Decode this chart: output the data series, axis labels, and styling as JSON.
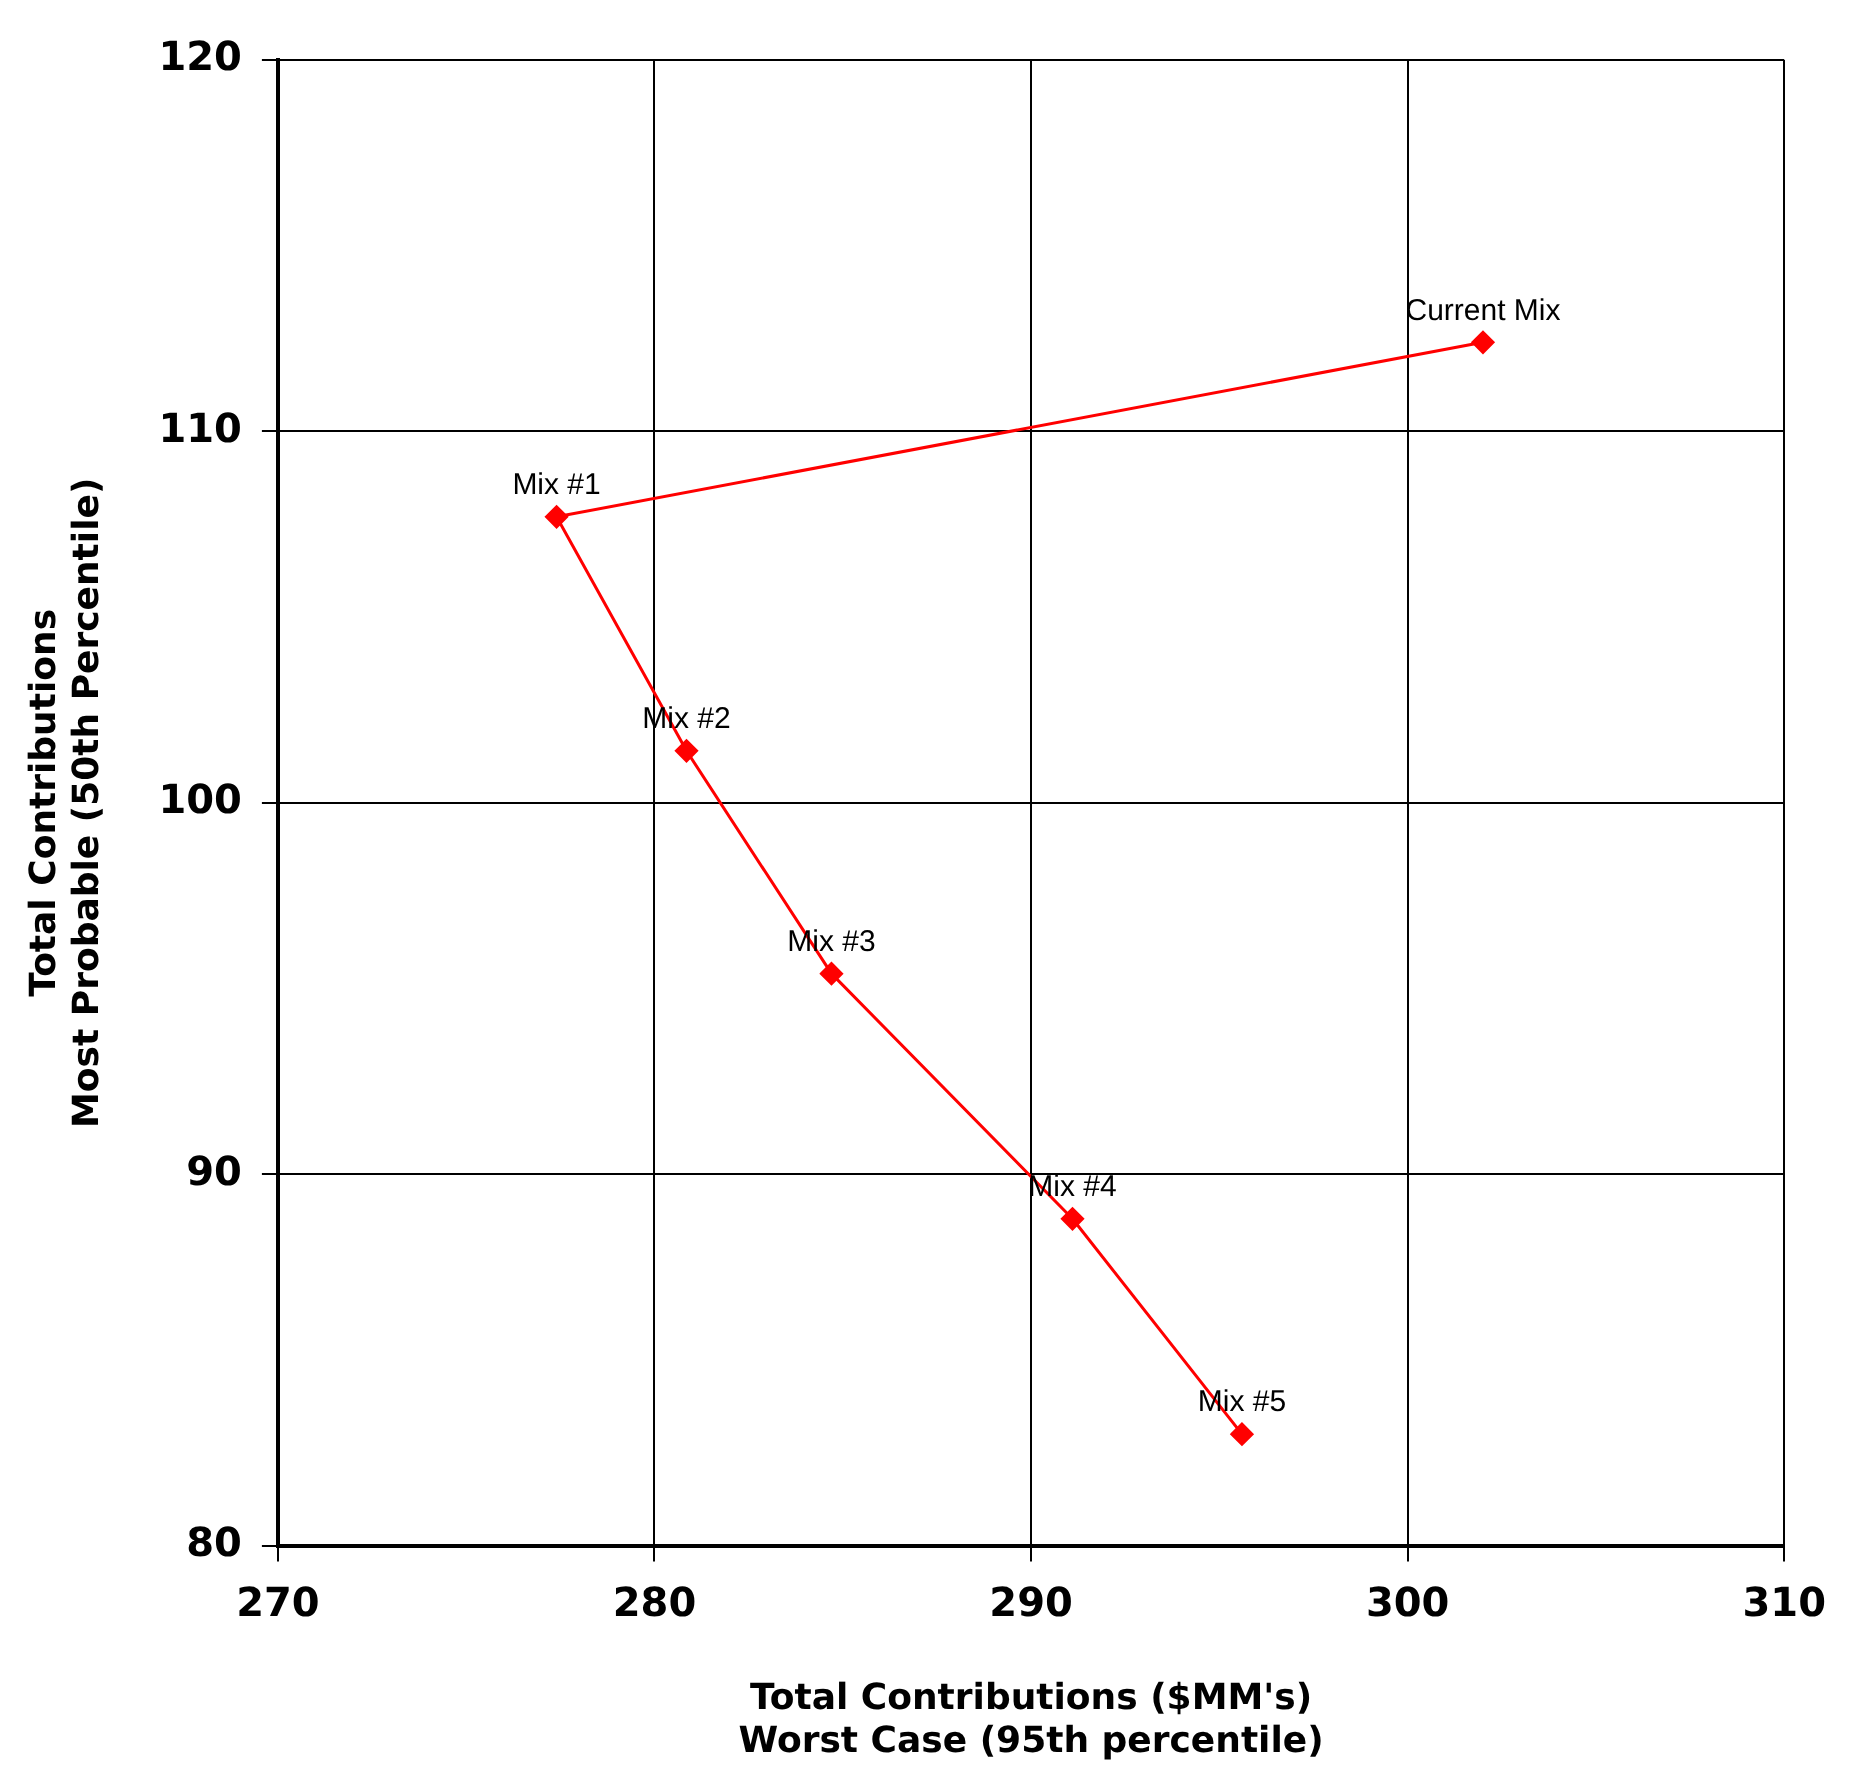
{
  "chart_data": {
    "type": "line",
    "xlabel": "Total Contributions ($MM's)\nWorst Case (95th percentile)",
    "ylabel": "Total Contributions\nMost Probable (50th Percentile)",
    "series": [
      {
        "color": "#ff0000",
        "x": [
          302.0,
          277.4,
          280.85,
          284.7,
          291.1,
          295.6
        ],
        "values": [
          112.4,
          107.7,
          101.4,
          95.4,
          88.8,
          83.0
        ]
      }
    ],
    "xlim": [
      270,
      310
    ],
    "xticks": [
      270,
      280,
      290,
      300,
      310
    ],
    "ylim": [
      80,
      120
    ],
    "yticks": [
      80,
      90,
      100,
      110,
      120
    ],
    "grid": true,
    "legend": false,
    "marker": "diamond",
    "line_style": "solid",
    "annotations": [
      {
        "text": "Current Mix",
        "x": 302.0,
        "y": 112.4
      },
      {
        "text": "Mix #1",
        "x": 277.4,
        "y": 107.7
      },
      {
        "text": "Mix #2",
        "x": 280.85,
        "y": 101.4
      },
      {
        "text": "Mix #3",
        "x": 284.7,
        "y": 95.4
      },
      {
        "text": "Mix #4",
        "x": 291.1,
        "y": 88.8
      },
      {
        "text": "Mix #5",
        "x": 295.6,
        "y": 83.0
      }
    ]
  }
}
